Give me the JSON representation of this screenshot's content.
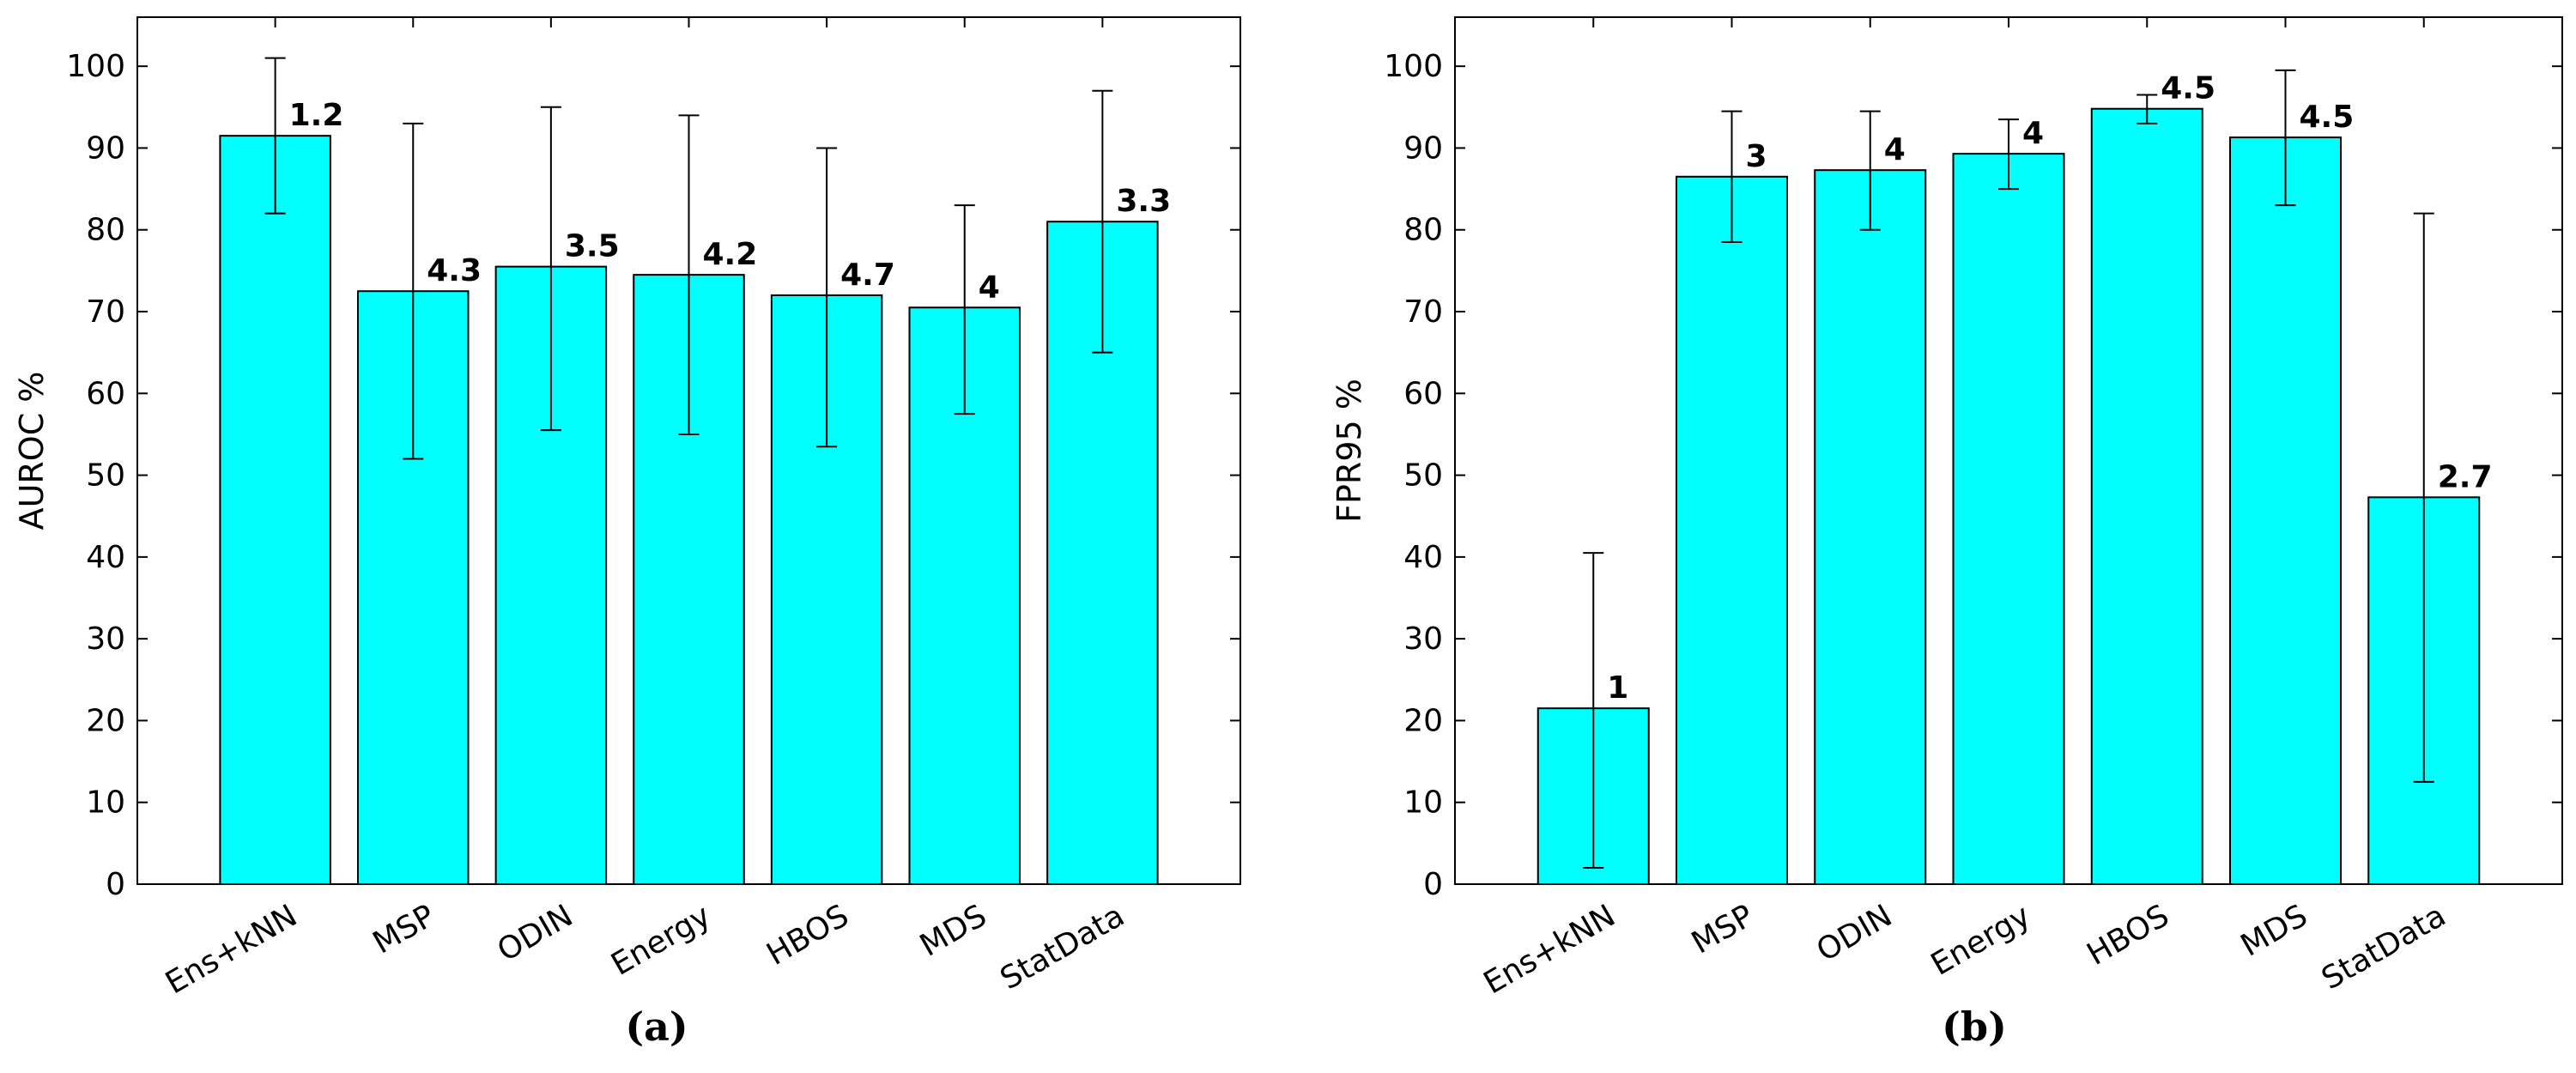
{
  "chart_data": [
    {
      "type": "bar",
      "panel_label": "(a)",
      "title": "",
      "xlabel": "",
      "ylabel": "AUROC %",
      "ylim": [
        0,
        106
      ],
      "yticks": [
        0,
        10,
        20,
        30,
        40,
        50,
        60,
        70,
        80,
        90,
        100
      ],
      "categories": [
        "Ens+kNN",
        "MSP",
        "ODIN",
        "Energy",
        "HBOS",
        "MDS",
        "StatData"
      ],
      "values": [
        91.5,
        72.5,
        75.5,
        74.5,
        72,
        70.5,
        81
      ],
      "error_low": [
        82,
        52,
        55.5,
        55,
        53.5,
        57.5,
        65
      ],
      "error_high": [
        101,
        93,
        95,
        94,
        90,
        83,
        97
      ],
      "bar_labels": [
        "1.2",
        "4.3",
        "3.5",
        "4.2",
        "4.7",
        "4",
        "3.3"
      ],
      "bar_color": "#00FFFF",
      "grid": false
    },
    {
      "type": "bar",
      "panel_label": "(b)",
      "title": "",
      "xlabel": "",
      "ylabel": "FPR95 %",
      "ylim": [
        0,
        106
      ],
      "yticks": [
        0,
        10,
        20,
        30,
        40,
        50,
        60,
        70,
        80,
        90,
        100
      ],
      "categories": [
        "Ens+kNN",
        "MSP",
        "ODIN",
        "Energy",
        "HBOS",
        "MDS",
        "StatData"
      ],
      "values": [
        21.5,
        86.5,
        87.3,
        89.3,
        94.8,
        91.3,
        47.3
      ],
      "error_low": [
        2,
        78.5,
        80,
        85,
        93,
        83,
        12.5
      ],
      "error_high": [
        40.5,
        94.5,
        94.5,
        93.5,
        96.5,
        99.5,
        82
      ],
      "bar_labels": [
        "1",
        "3",
        "4",
        "4",
        "4.5",
        "4.5",
        "2.7"
      ],
      "bar_color": "#00FFFF",
      "grid": false
    }
  ]
}
